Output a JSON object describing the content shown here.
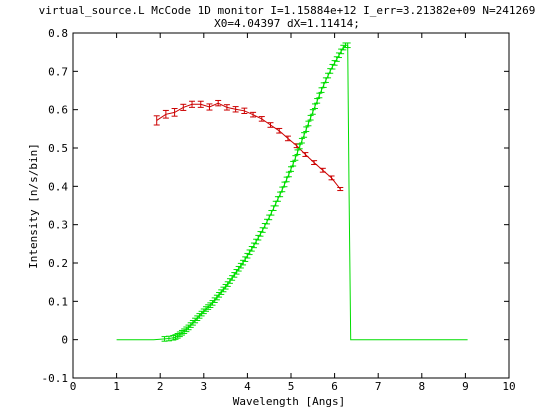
{
  "chart_data": {
    "type": "line",
    "title_line1": "virtual_source.L McCode 1D monitor I=1.15884e+12 I_err=3.21382e+09 N=241269",
    "title_line2": "X0=4.04397 dX=1.11414;",
    "xlabel": "Wavelength [Angs]",
    "ylabel": "Intensity [n/s/bin]",
    "xlim": [
      0,
      10
    ],
    "ylim": [
      -0.1,
      0.8
    ],
    "xticks": [
      0,
      1,
      2,
      3,
      4,
      5,
      6,
      7,
      8,
      9,
      10
    ],
    "xtick_labels": [
      "0",
      "1",
      "2",
      "3",
      "4",
      "5",
      "6",
      "7",
      "8",
      "9",
      "10"
    ],
    "yticks": [
      -0.1,
      0,
      0.1,
      0.2,
      0.3,
      0.4,
      0.5,
      0.6,
      0.7,
      0.8
    ],
    "ytick_labels": [
      "-0.1",
      "0",
      "0.1",
      "0.2",
      "0.3",
      "0.4",
      "0.5",
      "0.6",
      "0.7",
      "0.8"
    ],
    "grid": false,
    "legend": false,
    "series": [
      {
        "color": "#cc0000",
        "x": [
          1.92,
          2.13,
          2.33,
          2.53,
          2.73,
          2.93,
          3.13,
          3.33,
          3.53,
          3.73,
          3.93,
          4.13,
          4.33,
          4.53,
          4.73,
          4.93,
          5.13,
          5.33,
          5.53,
          5.73,
          5.93,
          6.13
        ],
        "y": [
          0.572,
          0.588,
          0.593,
          0.606,
          0.614,
          0.614,
          0.607,
          0.617,
          0.606,
          0.601,
          0.597,
          0.587,
          0.576,
          0.56,
          0.545,
          0.525,
          0.506,
          0.483,
          0.462,
          0.442,
          0.422,
          0.393
        ],
        "err": [
          0.012,
          0.01,
          0.01,
          0.008,
          0.008,
          0.008,
          0.008,
          0.007,
          0.007,
          0.007,
          0.007,
          0.006,
          0.006,
          0.006,
          0.006,
          0.006,
          0.005,
          0.005,
          0.005,
          0.005,
          0.005,
          0.004
        ]
      },
      {
        "color": "#00dd00",
        "x": [
          1.0,
          1.85,
          2.1,
          2.2,
          2.3,
          2.35,
          2.4,
          2.45,
          2.5,
          2.55,
          2.6,
          2.65,
          2.7,
          2.75,
          2.8,
          2.85,
          2.9,
          2.95,
          3.0,
          3.05,
          3.1,
          3.15,
          3.2,
          3.25,
          3.3,
          3.35,
          3.4,
          3.45,
          3.5,
          3.55,
          3.6,
          3.65,
          3.7,
          3.75,
          3.8,
          3.85,
          3.9,
          3.95,
          4.0,
          4.05,
          4.1,
          4.15,
          4.2,
          4.25,
          4.3,
          4.35,
          4.4,
          4.45,
          4.5,
          4.55,
          4.6,
          4.65,
          4.7,
          4.75,
          4.8,
          4.85,
          4.9,
          4.95,
          5.0,
          5.05,
          5.1,
          5.15,
          5.2,
          5.25,
          5.3,
          5.35,
          5.4,
          5.45,
          5.5,
          5.55,
          5.6,
          5.65,
          5.7,
          5.75,
          5.8,
          5.85,
          5.9,
          5.95,
          6.0,
          6.05,
          6.1,
          6.15,
          6.2,
          6.25,
          6.3,
          6.33,
          6.37,
          7.0,
          8.0,
          9.05
        ],
        "y": [
          0.0,
          0.0,
          0.002,
          0.003,
          0.005,
          0.007,
          0.01,
          0.014,
          0.018,
          0.022,
          0.027,
          0.032,
          0.038,
          0.044,
          0.05,
          0.056,
          0.062,
          0.068,
          0.074,
          0.08,
          0.085,
          0.09,
          0.096,
          0.103,
          0.11,
          0.117,
          0.124,
          0.131,
          0.138,
          0.145,
          0.153,
          0.161,
          0.169,
          0.177,
          0.185,
          0.193,
          0.201,
          0.21,
          0.219,
          0.228,
          0.237,
          0.246,
          0.256,
          0.266,
          0.276,
          0.286,
          0.297,
          0.308,
          0.319,
          0.331,
          0.343,
          0.355,
          0.367,
          0.379,
          0.392,
          0.405,
          0.418,
          0.431,
          0.445,
          0.459,
          0.474,
          0.489,
          0.504,
          0.519,
          0.534,
          0.549,
          0.564,
          0.579,
          0.594,
          0.609,
          0.623,
          0.637,
          0.651,
          0.664,
          0.677,
          0.689,
          0.701,
          0.712,
          0.722,
          0.732,
          0.742,
          0.752,
          0.762,
          0.768,
          0.768,
          0.4,
          0.0,
          0.0,
          0.0,
          0.0
        ],
        "err_from_index": 2,
        "err_to_index": 84,
        "err": 0.006
      }
    ]
  }
}
